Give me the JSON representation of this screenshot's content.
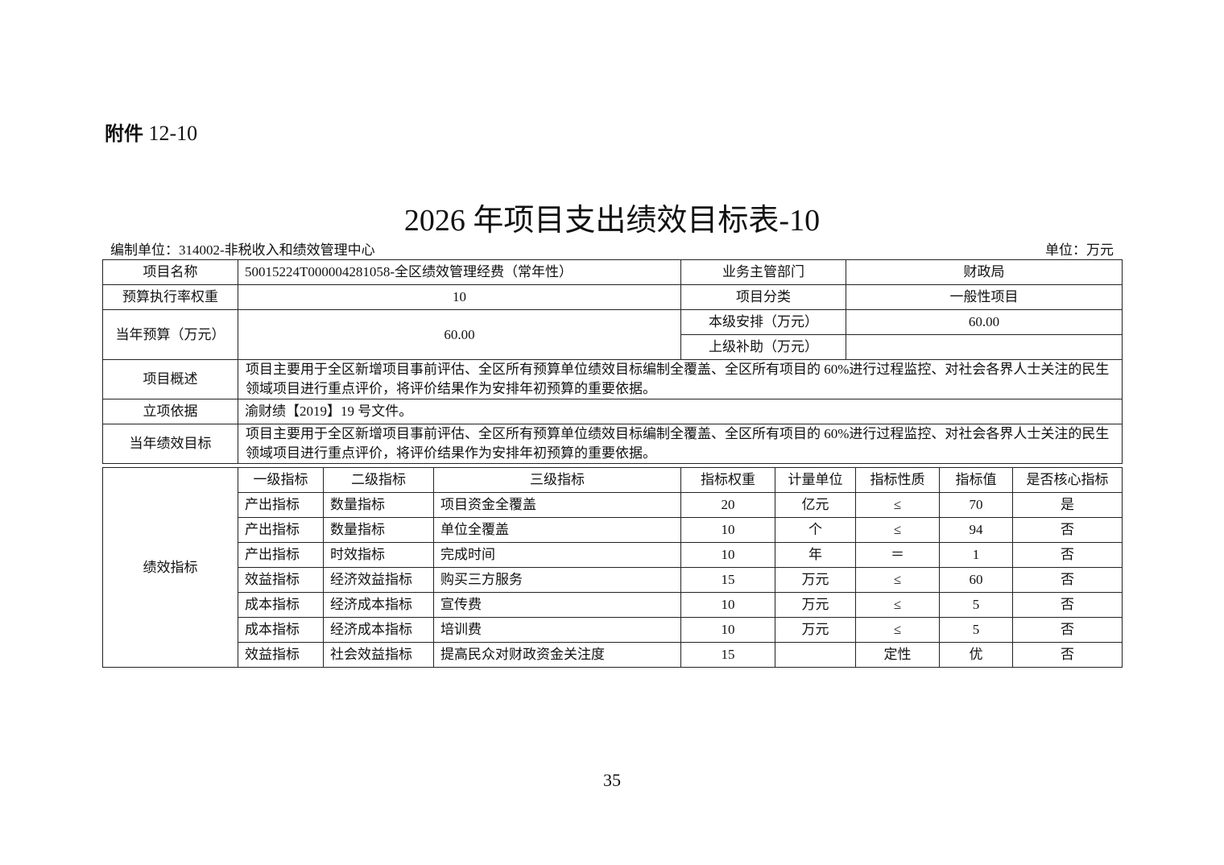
{
  "attachment_label": "附件",
  "attachment_number": "12-10",
  "title": "2026 年项目支出绩效目标表-10",
  "compiling_unit": "编制单位：314002-非税收入和绩效管理中心",
  "unit": "单位：万元",
  "info": {
    "project_name_label": "项目名称",
    "project_name": "50015224T000004281058-全区绩效管理经费（常年性）",
    "dept_label": "业务主管部门",
    "dept": "财政局",
    "exec_weight_label": "预算执行率权重",
    "exec_weight": "10",
    "category_label": "项目分类",
    "category": "一般性项目",
    "budget_label": "当年预算（万元）",
    "budget": "60.00",
    "local_label": "本级安排（万元）",
    "local": "60.00",
    "upper_label": "上级补助（万元）",
    "upper": "",
    "overview_label": "项目概述",
    "overview": "项目主要用于全区新增项目事前评估、全区所有预算单位绩效目标编制全覆盖、全区所有项目的 60%进行过程监控、对社会各界人士关注的民生领域项目进行重点评价，将评价结果作为安排年初预算的重要依据。",
    "basis_label": "立项依据",
    "basis": "渝财绩【2019】19 号文件。",
    "goal_label": "当年绩效目标",
    "goal": "项目主要用于全区新增项目事前评估、全区所有预算单位绩效目标编制全覆盖、全区所有项目的 60%进行过程监控、对社会各界人士关注的民生领域项目进行重点评价，将评价结果作为安排年初预算的重要依据。"
  },
  "indicators": {
    "section_label": "绩效指标",
    "headers": [
      "一级指标",
      "二级指标",
      "三级指标",
      "指标权重",
      "计量单位",
      "指标性质",
      "指标值",
      "是否核心指标"
    ],
    "rows": [
      [
        "产出指标",
        "数量指标",
        "项目资金全覆盖",
        "20",
        "亿元",
        "≤",
        "70",
        "是"
      ],
      [
        "产出指标",
        "数量指标",
        "单位全覆盖",
        "10",
        "个",
        "≤",
        "94",
        "否"
      ],
      [
        "产出指标",
        "时效指标",
        "完成时间",
        "10",
        "年",
        "＝",
        "1",
        "否"
      ],
      [
        "效益指标",
        "经济效益指标",
        "购买三方服务",
        "15",
        "万元",
        "≤",
        "60",
        "否"
      ],
      [
        "成本指标",
        "经济成本指标",
        "宣传费",
        "10",
        "万元",
        "≤",
        "5",
        "否"
      ],
      [
        "成本指标",
        "经济成本指标",
        "培训费",
        "10",
        "万元",
        "≤",
        "5",
        "否"
      ],
      [
        "效益指标",
        "社会效益指标",
        "提高民众对财政资金关注度",
        "15",
        "",
        "定性",
        "优",
        "否"
      ]
    ]
  },
  "page_number": "35"
}
